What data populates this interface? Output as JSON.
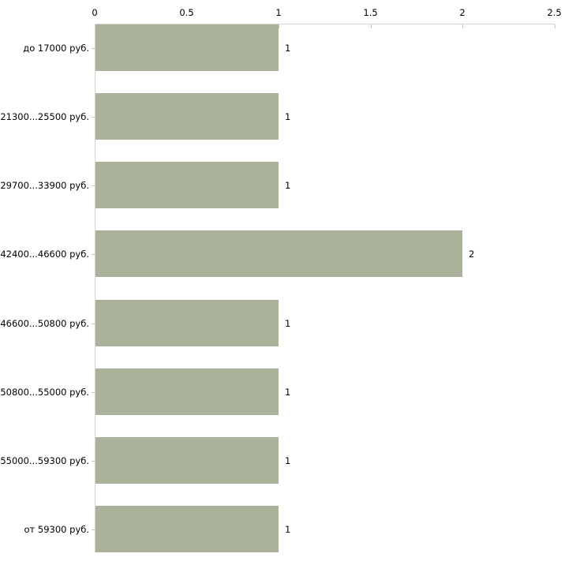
{
  "chart_data": {
    "type": "bar",
    "orientation": "horizontal",
    "title": "",
    "xlabel": "",
    "ylabel": "",
    "categories": [
      "до 17000 руб.",
      "21300...25500 руб.",
      "29700...33900 руб.",
      "42400...46600 руб.",
      "46600...50800 руб.",
      "50800...55000 руб.",
      "55000...59300 руб.",
      "от 59300 руб."
    ],
    "values": [
      1,
      1,
      1,
      2,
      1,
      1,
      1,
      1
    ],
    "x_axis": {
      "position": "top",
      "range": [
        0,
        2.5
      ],
      "ticks": [
        0,
        0.5,
        1,
        1.5,
        2,
        2.5
      ],
      "tick_labels": [
        "0",
        "0.5",
        "1",
        "1.5",
        "2",
        "2.5"
      ]
    },
    "grid": false,
    "legend": false,
    "colors": {
      "bar": "#abb29c",
      "axis_line": "#d4d4cc",
      "tick_mark": "#c6c5ae",
      "text": "#000000",
      "background": "#ffffff"
    }
  }
}
